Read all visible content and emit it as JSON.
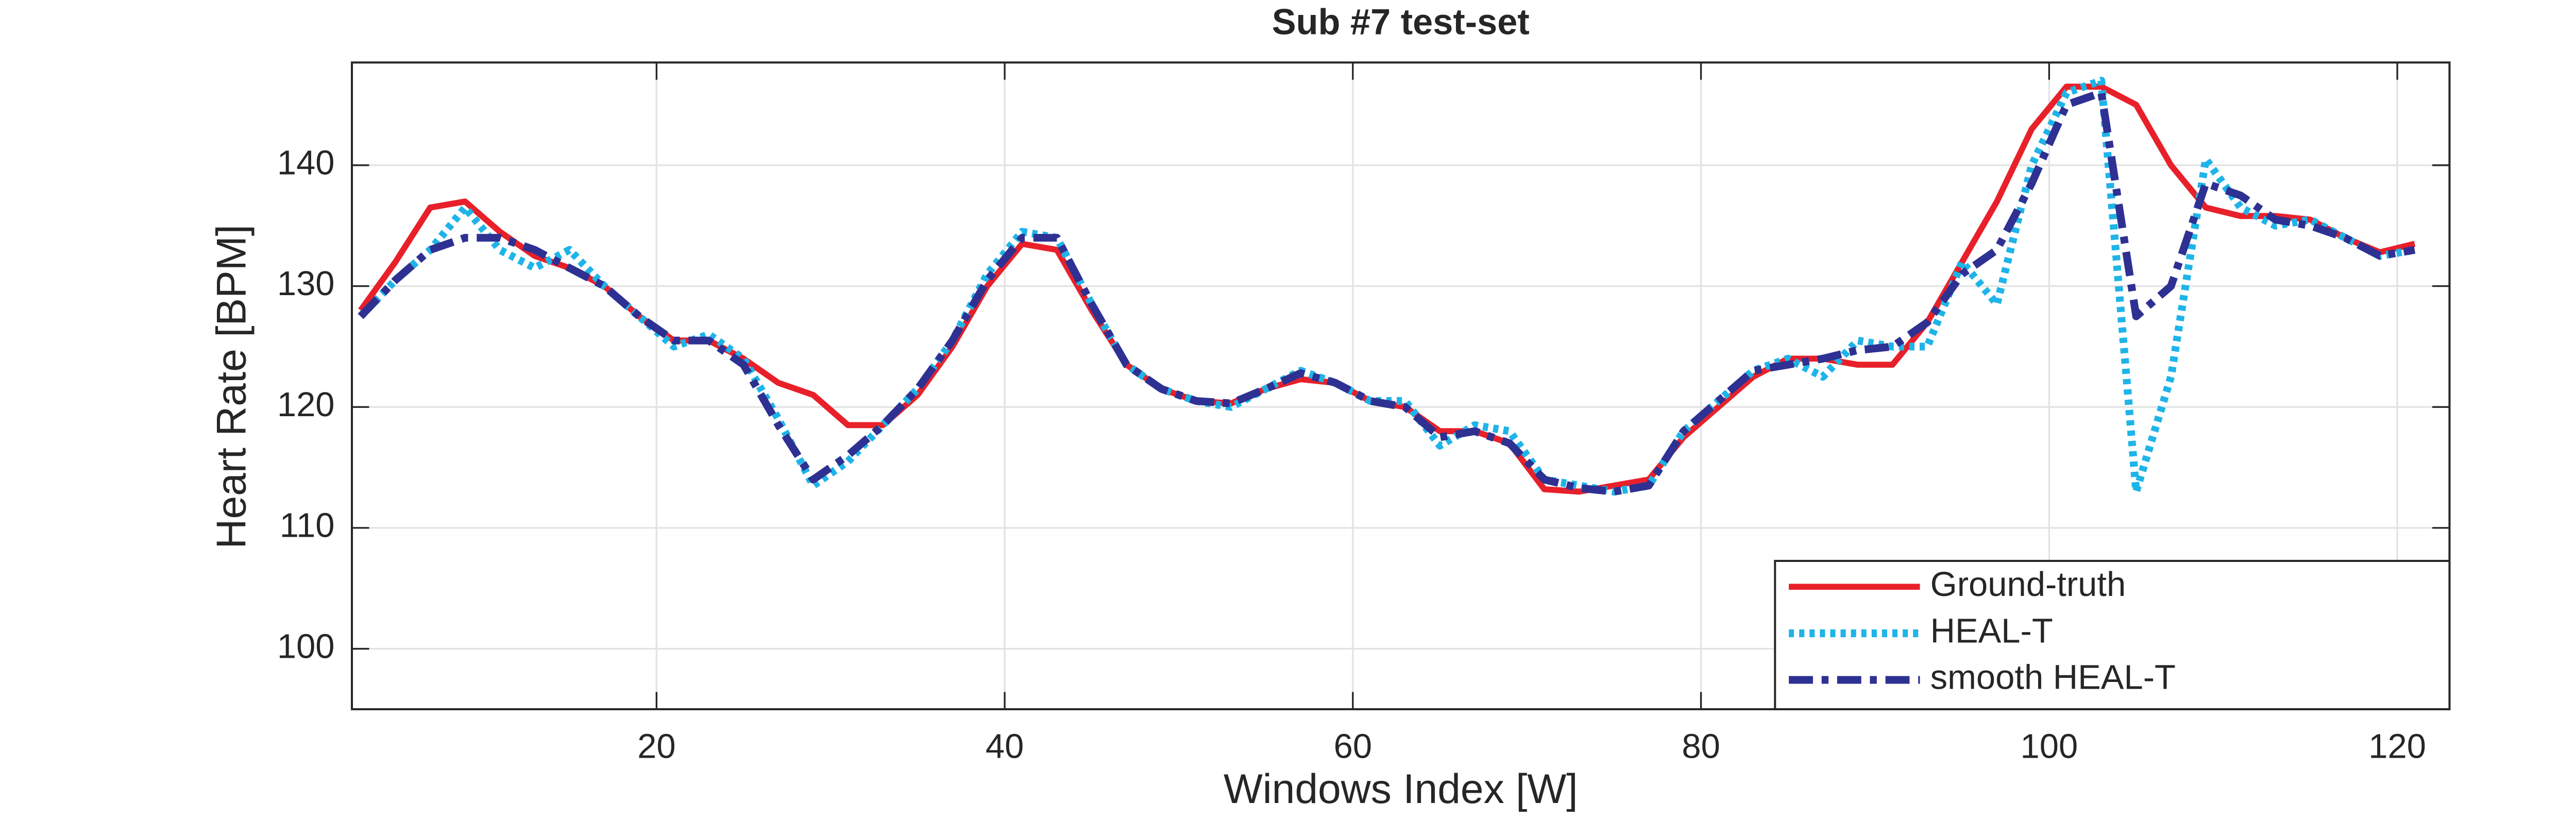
{
  "chart_data": {
    "type": "line",
    "title": "Sub #7 test-set",
    "x_label": "Windows Index [W]",
    "y_label": "Heart Rate [BPM]",
    "x": [
      3,
      5,
      7,
      9,
      11,
      13,
      15,
      17,
      19,
      21,
      23,
      25,
      27,
      29,
      31,
      33,
      35,
      37,
      39,
      41,
      43,
      45,
      47,
      49,
      51,
      53,
      55,
      57,
      59,
      61,
      63,
      65,
      67,
      69,
      71,
      73,
      75,
      77,
      79,
      81,
      83,
      85,
      87,
      89,
      91,
      93,
      95,
      97,
      99,
      101,
      103,
      105,
      107,
      109,
      111,
      113,
      115,
      117,
      119,
      121
    ],
    "series": [
      {
        "name": "Ground-truth",
        "color": "#e8202a",
        "style": "solid",
        "values": [
          128,
          132,
          136.5,
          137,
          134.5,
          132.5,
          131.5,
          130,
          127.5,
          125.5,
          125.5,
          124,
          122,
          121,
          118.5,
          118.5,
          121,
          125,
          130,
          133.5,
          133,
          128,
          123.5,
          121.5,
          120.5,
          120.3,
          121.5,
          122.3,
          122,
          120.5,
          120,
          118,
          118,
          117,
          113.2,
          113,
          113.5,
          114,
          117.5,
          120,
          122.5,
          124,
          124,
          123.5,
          123.5,
          127,
          132,
          137,
          143,
          146.5,
          146.5,
          145,
          140,
          136.5,
          135.8,
          135.8,
          135.5,
          134,
          132.8,
          133.5
        ]
      },
      {
        "name": "HEAL-T",
        "color": "#1eb4e8",
        "style": "dotted",
        "values": [
          127.5,
          130.5,
          133,
          136.5,
          133,
          131.5,
          133,
          130,
          127.5,
          125,
          126,
          124,
          119,
          113.5,
          115.5,
          118.5,
          121.5,
          125.5,
          131,
          134.5,
          134,
          128.5,
          123.5,
          121.5,
          120.5,
          120,
          121.5,
          123,
          122,
          120.5,
          120.5,
          116.8,
          118.5,
          118,
          114,
          113.5,
          113,
          113.5,
          118,
          120.5,
          123,
          124,
          122.5,
          125.5,
          125,
          125,
          132,
          128.5,
          140,
          146,
          147,
          113,
          122.5,
          140.5,
          136.5,
          135,
          135.5,
          134,
          132.5,
          133
        ]
      },
      {
        "name": "smooth HEAL-T",
        "color": "#2e3192",
        "style": "dashdot",
        "values": [
          127.5,
          130.5,
          133,
          134,
          134,
          133,
          131.5,
          130,
          127.5,
          125.5,
          125.5,
          123.5,
          118.5,
          114,
          116,
          118.5,
          121.5,
          125.5,
          130.5,
          134,
          134,
          128.5,
          123.5,
          121.5,
          120.5,
          120.3,
          121.5,
          122.8,
          122,
          120.5,
          120,
          117.5,
          118,
          117,
          114,
          113.3,
          113,
          113.5,
          118,
          120.5,
          123,
          123.5,
          124,
          124.7,
          125,
          127,
          131,
          133,
          138.5,
          145,
          146,
          127.5,
          130,
          138.5,
          137.5,
          135.5,
          135,
          134,
          132.5,
          133
        ]
      }
    ],
    "xlim": [
      2.5,
      123
    ],
    "ylim": [
      95,
      148.5
    ],
    "xticks": [
      20,
      40,
      60,
      80,
      100,
      120
    ],
    "yticks": [
      100,
      110,
      120,
      130,
      140
    ],
    "grid": true,
    "legend": "lower right"
  }
}
